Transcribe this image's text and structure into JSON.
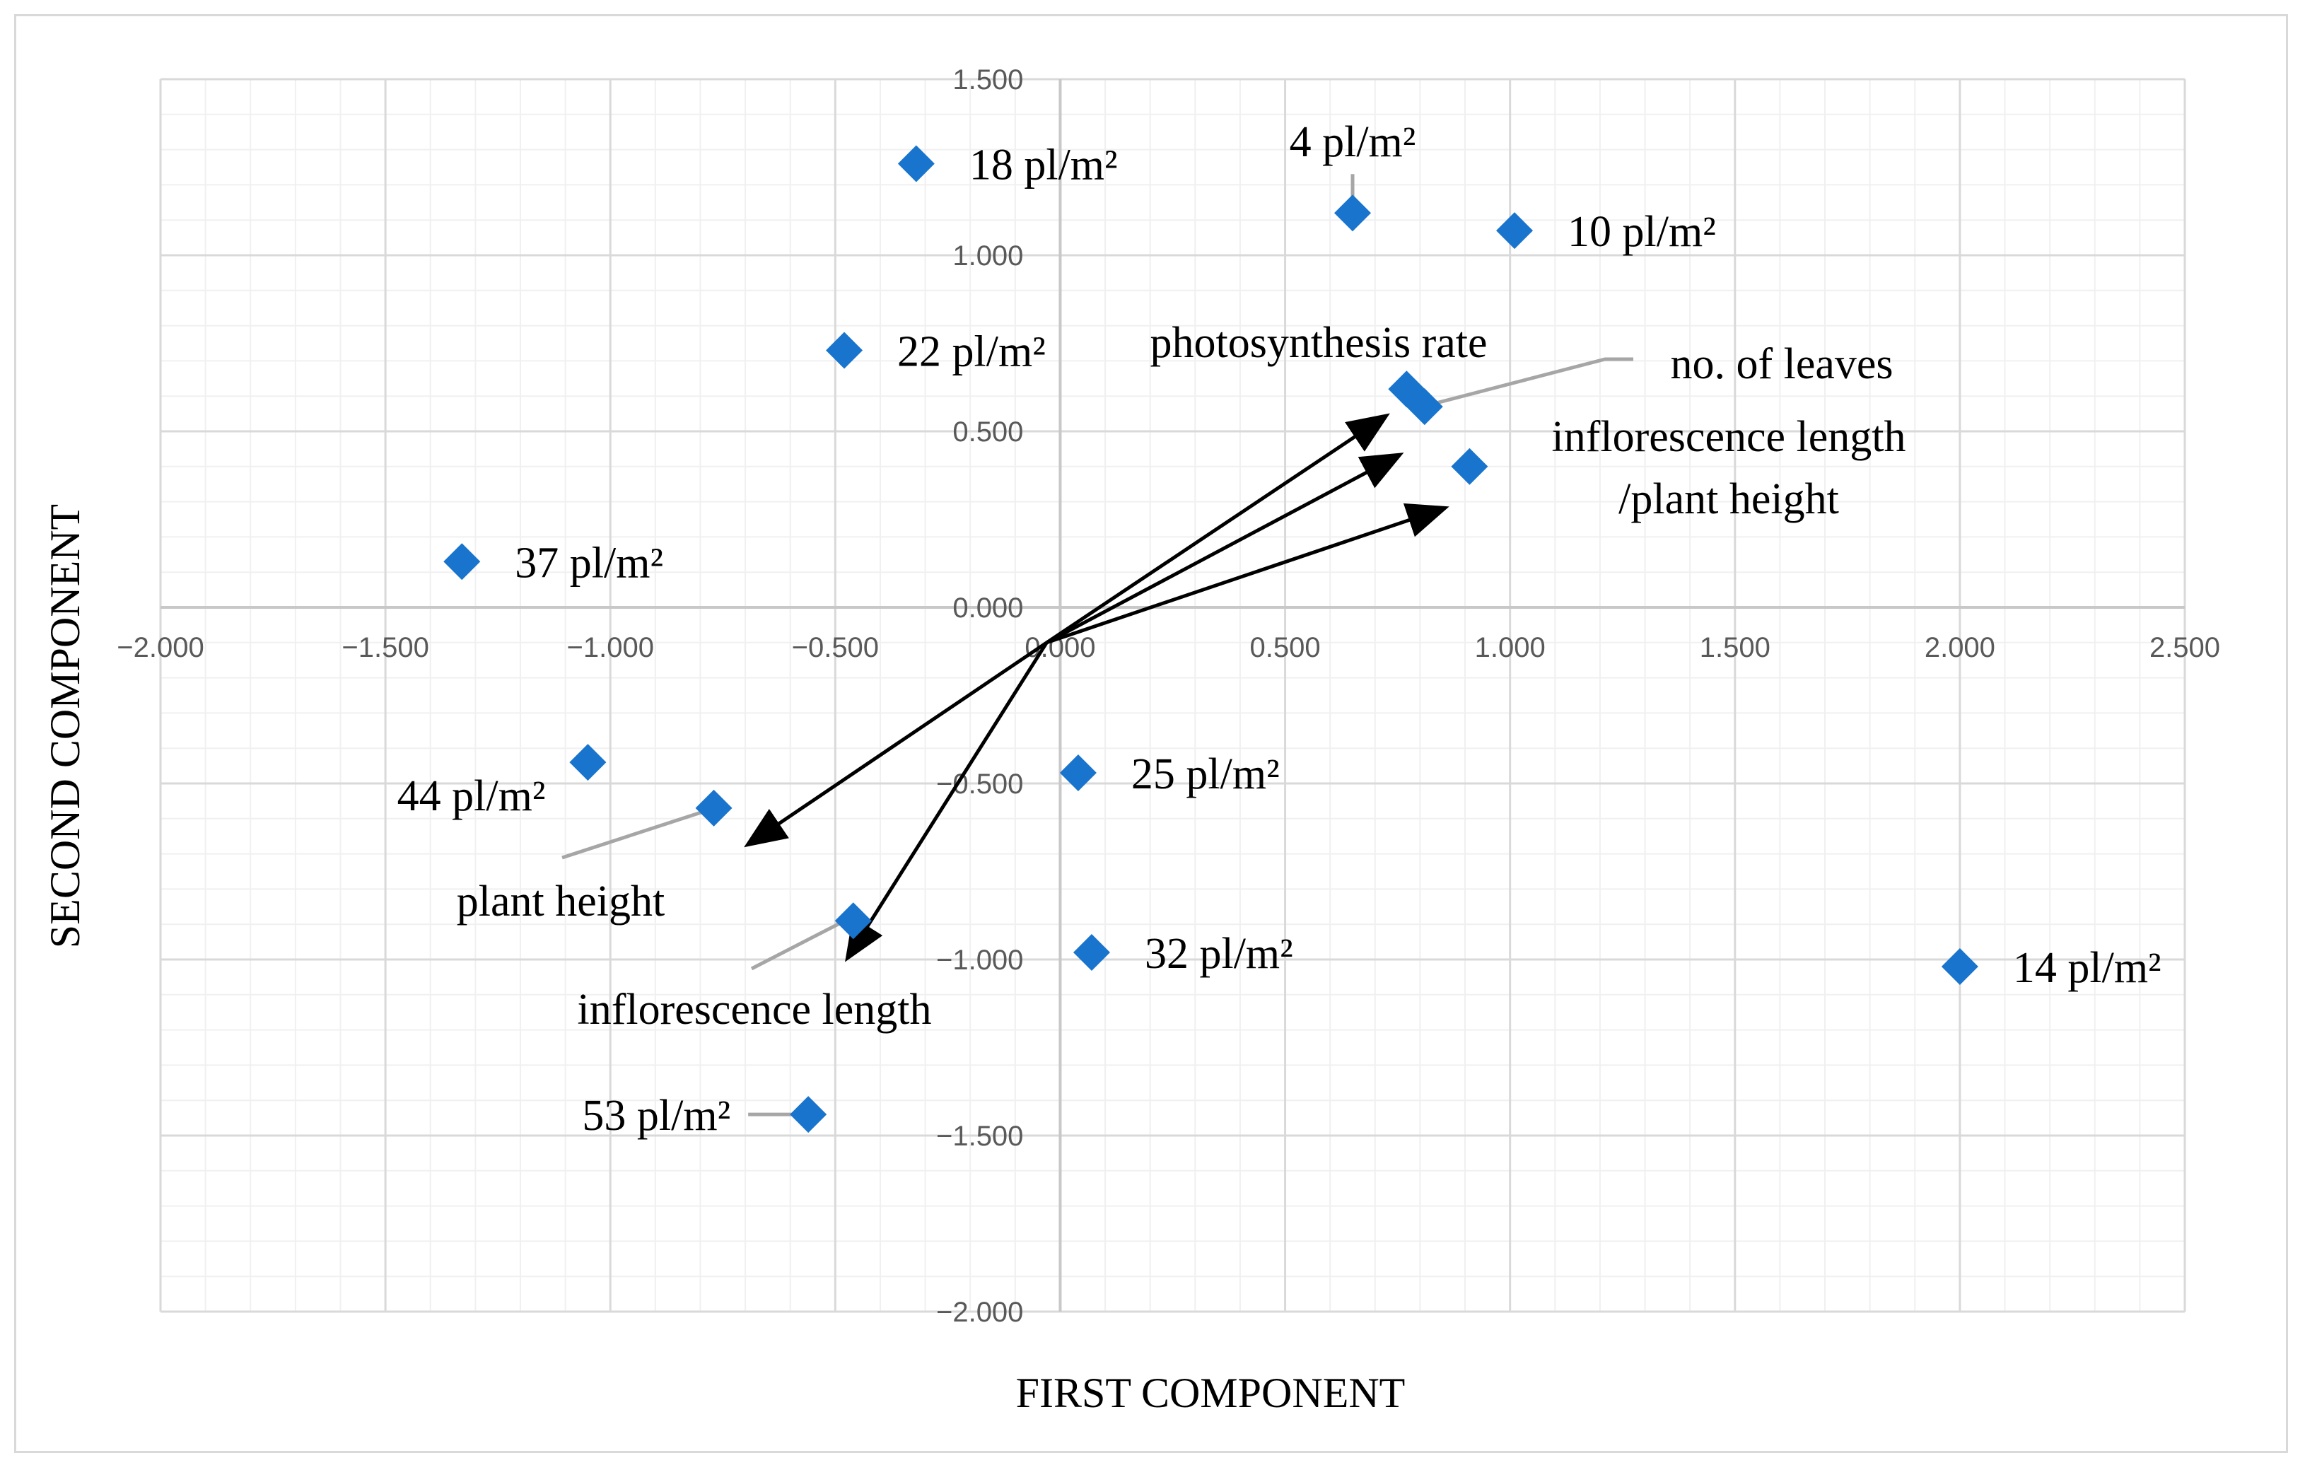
{
  "chart_data": {
    "type": "scatter",
    "title": "",
    "xlabel": "FIRST COMPONENT",
    "ylabel": "SECOND COMPONENT",
    "xlim": [
      -2.0,
      2.5
    ],
    "ylim": [
      -2.0,
      1.5
    ],
    "x_ticks": [
      "-2.000",
      "-1.500",
      "-1.000",
      "-0.500",
      "0.000",
      "0.500",
      "1.000",
      "1.500",
      "2.000",
      "2.500"
    ],
    "y_ticks": [
      "1.500",
      "1.000",
      "0.500",
      "0.000",
      "-0.500",
      "-1.000",
      "-1.500",
      "-2.000"
    ],
    "grid": true,
    "marker": "diamond",
    "marker_color": "#1874cd",
    "leader_line_color": "#a6a6a6",
    "arrow_color": "#000000",
    "points": [
      {
        "label": "18 pl/m²",
        "x": -0.32,
        "y": 1.26
      },
      {
        "label": "4 pl/m²",
        "x": 0.65,
        "y": 1.12
      },
      {
        "label": "10 pl/m²",
        "x": 1.01,
        "y": 1.07
      },
      {
        "label": "22 pl/m²",
        "x": -0.48,
        "y": 0.73
      },
      {
        "label": "37 pl/m²",
        "x": -1.33,
        "y": 0.13
      },
      {
        "label": "44 pl/m²",
        "x": -1.05,
        "y": -0.44
      },
      {
        "label": "25 pl/m²",
        "x": 0.04,
        "y": -0.47
      },
      {
        "label": "32 pl/m²",
        "x": 0.07,
        "y": -0.98
      },
      {
        "label": "14 pl/m²",
        "x": 2.0,
        "y": -1.02
      },
      {
        "label": "53 pl/m²",
        "x": -0.56,
        "y": -1.44
      }
    ],
    "variables": [
      {
        "label": "photosynthesis rate",
        "x": 0.77,
        "y": 0.62,
        "arrow_end": [
          0.72,
          0.54
        ]
      },
      {
        "label": "no. of leaves",
        "x": 0.81,
        "y": 0.57,
        "arrow_end": [
          0.75,
          0.43
        ]
      },
      {
        "label": "inflorescence length /plant height",
        "x": 0.91,
        "y": 0.4,
        "arrow_end": [
          0.85,
          0.28
        ]
      },
      {
        "label": "plant height",
        "x": -0.77,
        "y": -0.57,
        "arrow_end": [
          -0.69,
          -0.67
        ]
      },
      {
        "label": "inflorescence length",
        "x": -0.46,
        "y": -0.89,
        "arrow_end": [
          -0.47,
          -0.99
        ]
      }
    ],
    "arrow_origin": [
      -0.03,
      -0.1
    ]
  }
}
